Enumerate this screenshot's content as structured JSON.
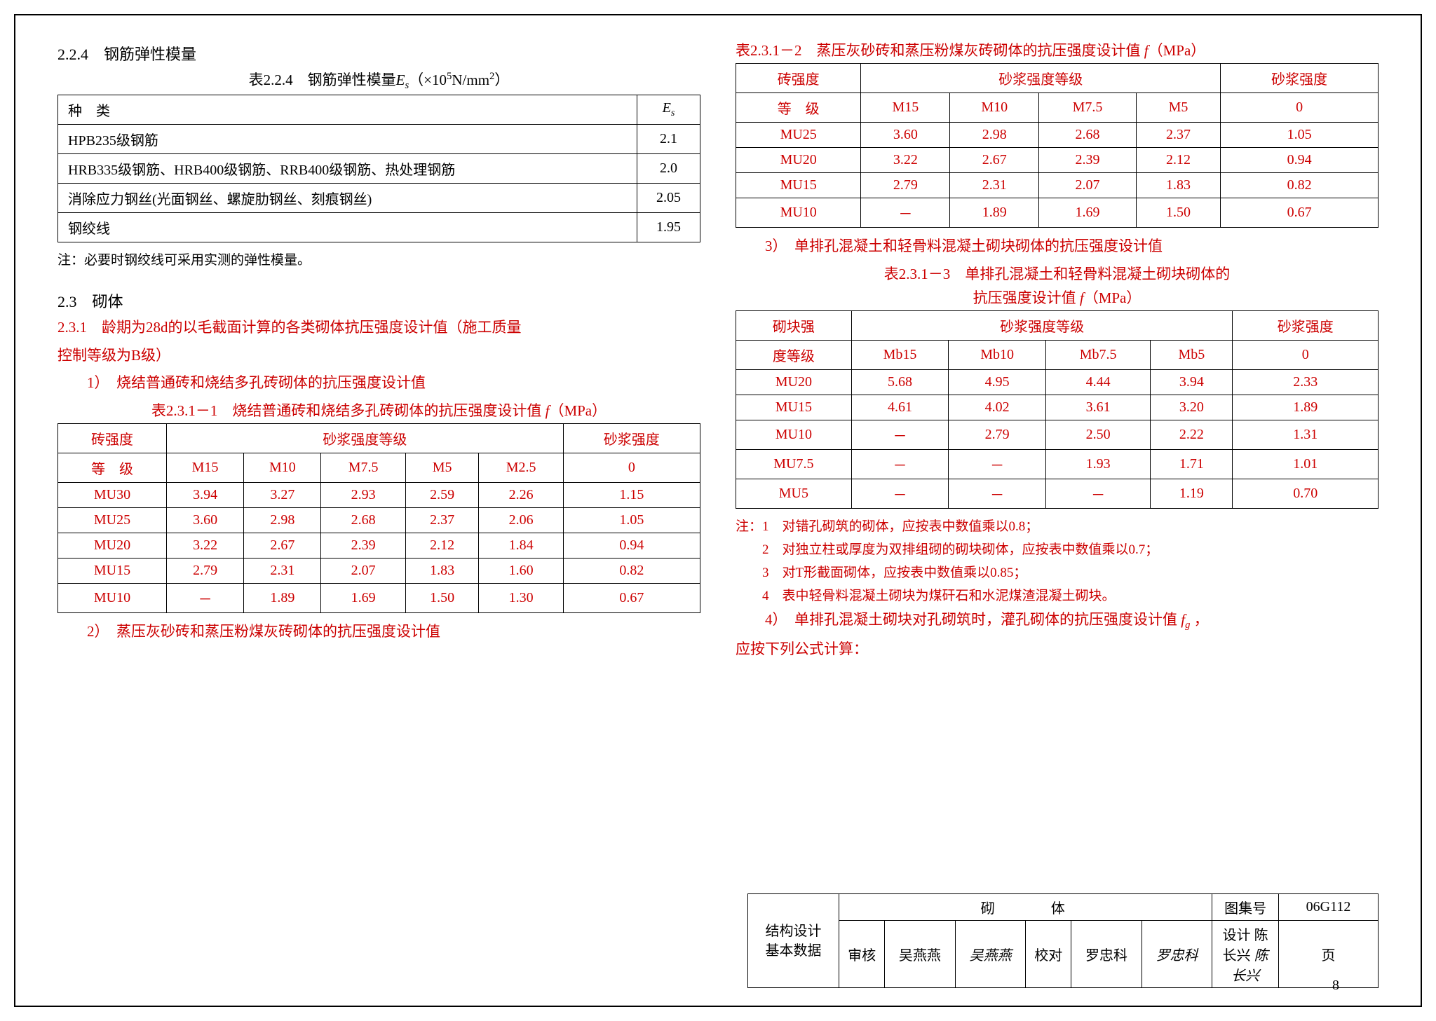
{
  "left": {
    "sec224": {
      "title": "2.2.4　钢筋弹性模量",
      "caption": "表2.2.4　钢筋弹性模量 E_s ( ×10⁵N/mm² )",
      "header": [
        "种　类",
        "E_s"
      ],
      "rows": [
        [
          "HPB235级钢筋",
          "2.1"
        ],
        [
          "HRB335级钢筋、HRB400级钢筋、RRB400级钢筋、热处理钢筋",
          "2.0"
        ],
        [
          "消除应力钢丝(光面钢丝、螺旋肋钢丝、刻痕钢丝)",
          "2.05"
        ],
        [
          "钢绞线",
          "1.95"
        ]
      ],
      "note": "注：必要时钢绞线可采用实测的弹性模量。"
    },
    "sec23": "2.3　砌体",
    "sec231": {
      "line1": "2.3.1　龄期为28d的以毛截面计算的各类砌体抗压强度设计值（施工质量",
      "line2": "控制等级为B级）",
      "item1": "1）　烧结普通砖和烧结多孔砖砌体的抗压强度设计值",
      "caption": "表2.3.1－1　烧结普通砖和烧结多孔砖砌体的抗压强度设计值 f（MPa）",
      "headerTop": [
        "砖强度",
        "砂浆强度等级",
        "砂浆强度"
      ],
      "headerBot": [
        "等　级",
        "M15",
        "M10",
        "M7.5",
        "M5",
        "M2.5",
        "0"
      ],
      "rows": [
        [
          "MU30",
          "3.94",
          "3.27",
          "2.93",
          "2.59",
          "2.26",
          "1.15"
        ],
        [
          "MU25",
          "3.60",
          "2.98",
          "2.68",
          "2.37",
          "2.06",
          "1.05"
        ],
        [
          "MU20",
          "3.22",
          "2.67",
          "2.39",
          "2.12",
          "1.84",
          "0.94"
        ],
        [
          "MU15",
          "2.79",
          "2.31",
          "2.07",
          "1.83",
          "1.60",
          "0.82"
        ],
        [
          "MU10",
          "－",
          "1.89",
          "1.69",
          "1.50",
          "1.30",
          "0.67"
        ]
      ],
      "item2": "2）　蒸压灰砂砖和蒸压粉煤灰砖砌体的抗压强度设计值"
    }
  },
  "right": {
    "t2": {
      "caption": "表2.3.1－2　蒸压灰砂砖和蒸压粉煤灰砖砌体的抗压强度设计值 f（MPa）",
      "headerTop": [
        "砖强度",
        "砂浆强度等级",
        "砂浆强度"
      ],
      "headerBot": [
        "等　级",
        "M15",
        "M10",
        "M7.5",
        "M5",
        "0"
      ],
      "rows": [
        [
          "MU25",
          "3.60",
          "2.98",
          "2.68",
          "2.37",
          "1.05"
        ],
        [
          "MU20",
          "3.22",
          "2.67",
          "2.39",
          "2.12",
          "0.94"
        ],
        [
          "MU15",
          "2.79",
          "2.31",
          "2.07",
          "1.83",
          "0.82"
        ],
        [
          "MU10",
          "－",
          "1.89",
          "1.69",
          "1.50",
          "0.67"
        ]
      ]
    },
    "item3": "3）　单排孔混凝土和轻骨料混凝土砌块砌体的抗压强度设计值",
    "t3": {
      "captionA": "表2.3.1－3　单排孔混凝土和轻骨料混凝土砌块砌体的",
      "captionB": "抗压强度设计值 f（MPa）",
      "headerTop": [
        "砌块强",
        "砂浆强度等级",
        "砂浆强度"
      ],
      "headerBot": [
        "度等级",
        "Mb15",
        "Mb10",
        "Mb7.5",
        "Mb5",
        "0"
      ],
      "rows": [
        [
          "MU20",
          "5.68",
          "4.95",
          "4.44",
          "3.94",
          "2.33"
        ],
        [
          "MU15",
          "4.61",
          "4.02",
          "3.61",
          "3.20",
          "1.89"
        ],
        [
          "MU10",
          "－",
          "2.79",
          "2.50",
          "2.22",
          "1.31"
        ],
        [
          "MU7.5",
          "－",
          "－",
          "1.93",
          "1.71",
          "1.01"
        ],
        [
          "MU5",
          "－",
          "－",
          "－",
          "1.19",
          "0.70"
        ]
      ]
    },
    "notesHead": "注：1　对错孔砌筑的砌体，应按表中数值乘以0.8；",
    "notes": [
      "2　对独立柱或厚度为双排组砌的砌块砌体，应按表中数值乘以0.7；",
      "3　对T形截面砌体，应按表中数值乘以0.85；",
      "4　表中轻骨料混凝土砌块为煤矸石和水泥煤渣混凝土砌块。"
    ],
    "item4a": "4）　单排孔混凝土砌块对孔砌筑时，灌孔砌体的抗压强度设计值 f_g ，",
    "item4b": "应按下列公式计算："
  },
  "footer": {
    "r1c1": "结构设计",
    "r1c2": "基本数据",
    "title": "砌　体",
    "labelSet": "图集号",
    "setNo": "06G112",
    "check": "审核",
    "checkName": "吴燕燕",
    "checkSig": "吴燕燕",
    "proof": "校对",
    "proofName": "罗忠科",
    "proofSig": "罗忠科",
    "design": "设计",
    "designName": "陈长兴",
    "designSig": "陈长兴",
    "pageLabel": "页",
    "pageNo": "8"
  },
  "style": {
    "text_color": "#000000",
    "red_color": "#cc0000",
    "border_color": "#000000",
    "body_fontsize": 20,
    "title_fontsize": 22
  }
}
